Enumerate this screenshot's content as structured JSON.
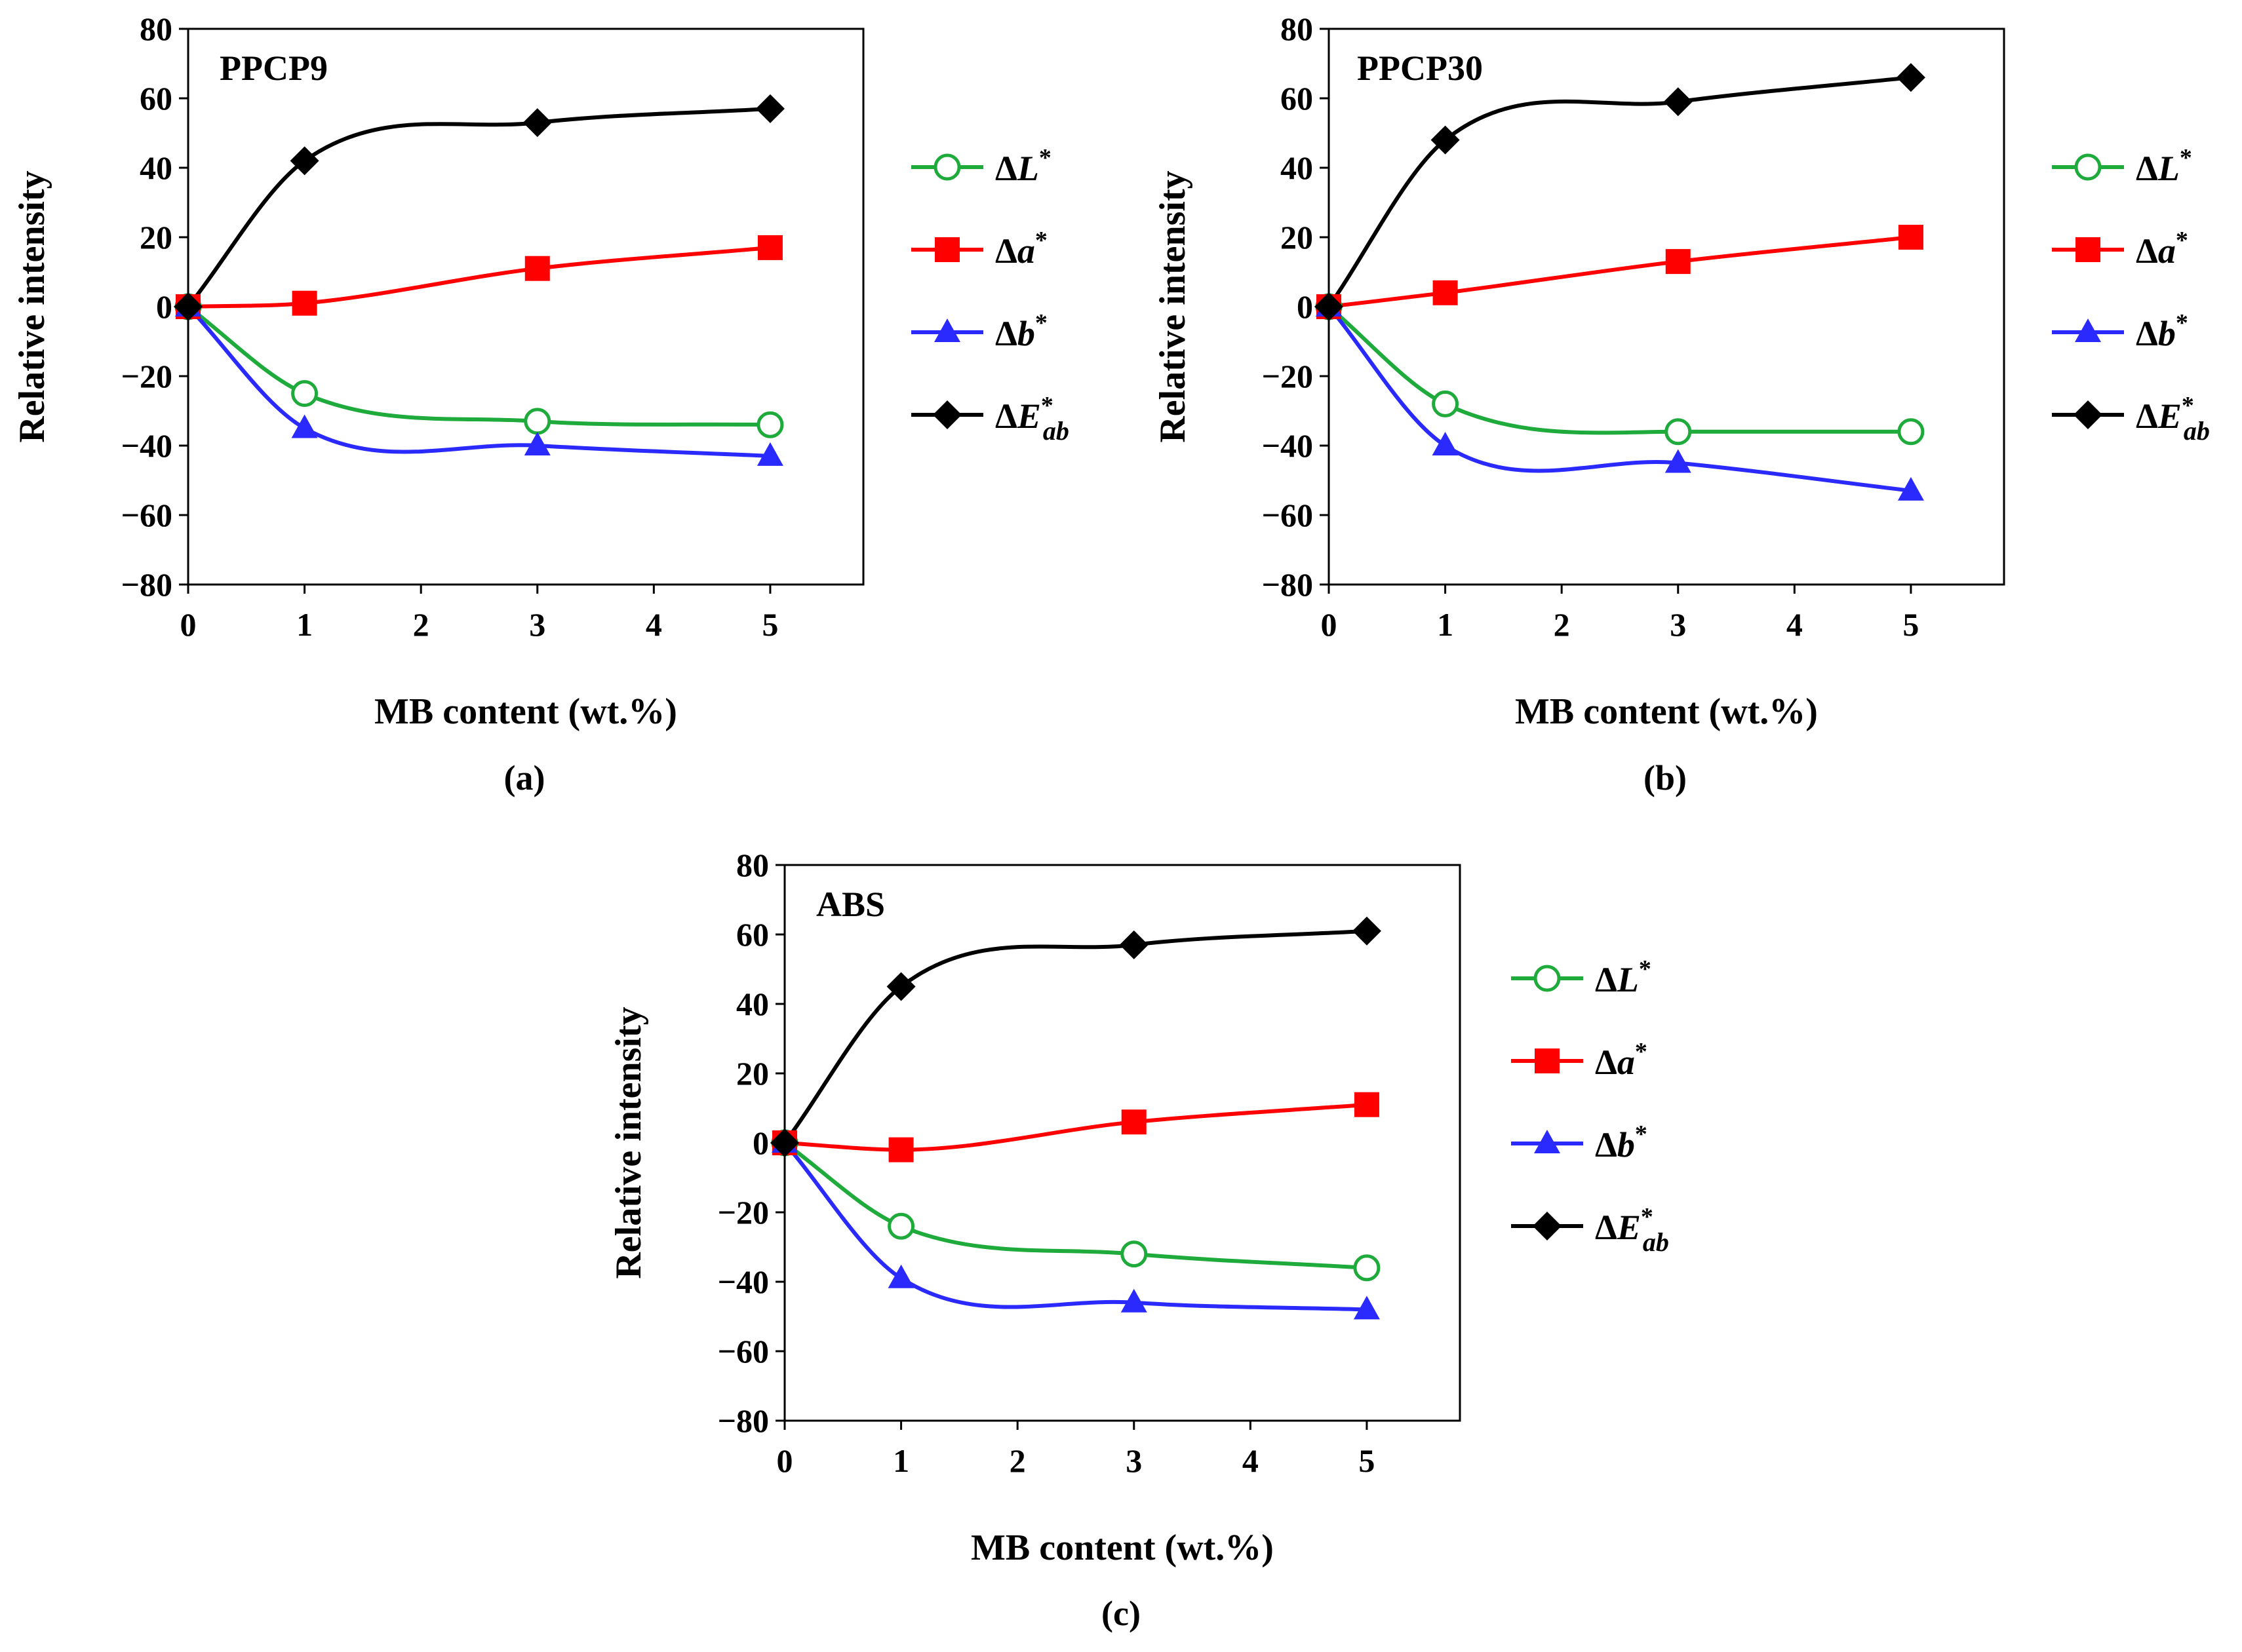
{
  "figure": {
    "x_axis_label": "MB content (wt.%)",
    "y_axis_label": "Relative intensity",
    "x_ticks": [
      "0",
      "1",
      "2",
      "3",
      "4",
      "5"
    ],
    "y_ticks": [
      "80",
      "60",
      "40",
      "20",
      "0",
      "−20",
      "−40",
      "−60",
      "−80"
    ]
  },
  "legend": [
    {
      "delta": "Δ",
      "symbol": "L",
      "sup": "*",
      "sub": "",
      "color": "#1faa3c",
      "marker": "circle-open"
    },
    {
      "delta": "Δ",
      "symbol": "a",
      "sup": "*",
      "sub": "",
      "color": "#ff0000",
      "marker": "square"
    },
    {
      "delta": "Δ",
      "symbol": "b",
      "sup": "*",
      "sub": "",
      "color": "#2a2aff",
      "marker": "triangle"
    },
    {
      "delta": "Δ",
      "symbol": "E",
      "sup": "*",
      "sub": "ab",
      "color": "#000000",
      "marker": "diamond"
    }
  ],
  "chart_data": [
    {
      "type": "line",
      "title": "PPCP9",
      "caption": "(a)",
      "xlabel": "MB content (wt.%)",
      "ylabel": "Relative intensity",
      "xlim": [
        0,
        5.8
      ],
      "ylim": [
        -80,
        80
      ],
      "grid": false,
      "legend_position": "right",
      "x": [
        0,
        1,
        3,
        5
      ],
      "series": [
        {
          "name": "ΔL*",
          "values": [
            0,
            -25,
            -33,
            -34
          ]
        },
        {
          "name": "Δa*",
          "values": [
            0,
            1,
            11,
            17
          ]
        },
        {
          "name": "Δb*",
          "values": [
            0,
            -35,
            -40,
            -43
          ]
        },
        {
          "name": "ΔE*ab",
          "values": [
            0,
            42,
            53,
            57
          ]
        }
      ]
    },
    {
      "type": "line",
      "title": "PPCP30",
      "caption": "(b)",
      "xlabel": "MB content (wt.%)",
      "ylabel": "Relative intensity",
      "xlim": [
        0,
        5.8
      ],
      "ylim": [
        -80,
        80
      ],
      "grid": false,
      "legend_position": "right",
      "x": [
        0,
        1,
        3,
        5
      ],
      "series": [
        {
          "name": "ΔL*",
          "values": [
            0,
            -28,
            -36,
            -36
          ]
        },
        {
          "name": "Δa*",
          "values": [
            0,
            4,
            13,
            20
          ]
        },
        {
          "name": "Δb*",
          "values": [
            0,
            -40,
            -45,
            -53
          ]
        },
        {
          "name": "ΔE*ab",
          "values": [
            0,
            48,
            59,
            66
          ]
        }
      ]
    },
    {
      "type": "line",
      "title": "ABS",
      "caption": "(c)",
      "xlabel": "MB content (wt.%)",
      "ylabel": "Relative intensity",
      "xlim": [
        0,
        5.8
      ],
      "ylim": [
        -80,
        80
      ],
      "grid": false,
      "legend_position": "right",
      "x": [
        0,
        1,
        3,
        5
      ],
      "series": [
        {
          "name": "ΔL*",
          "values": [
            0,
            -24,
            -32,
            -36
          ]
        },
        {
          "name": "Δa*",
          "values": [
            0,
            -2,
            6,
            11
          ]
        },
        {
          "name": "Δb*",
          "values": [
            0,
            -39,
            -46,
            -48
          ]
        },
        {
          "name": "ΔE*ab",
          "values": [
            0,
            45,
            57,
            61
          ]
        }
      ]
    }
  ]
}
